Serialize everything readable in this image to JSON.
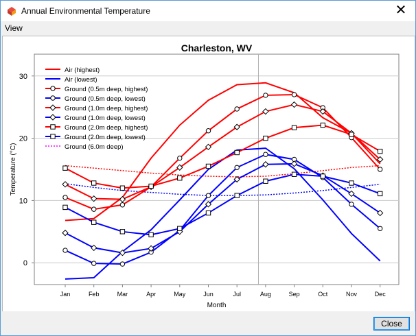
{
  "window": {
    "title": "Annual Environmental Temperature",
    "close_glyph": "✕"
  },
  "menu": {
    "view_label": "View"
  },
  "buttons": {
    "close_label": "Close"
  },
  "chart_data": {
    "type": "line",
    "title": "Charleston, WV",
    "xlabel": "Month",
    "ylabel": "Temperature (°C)",
    "categories": [
      "Jan",
      "Feb",
      "Mar",
      "Apr",
      "May",
      "Jun",
      "Jul",
      "Aug",
      "Sep",
      "Oct",
      "Nov",
      "Dec"
    ],
    "ylim": [
      -3.5,
      33.5
    ],
    "yticks": [
      0,
      10,
      20,
      30
    ],
    "grid": true,
    "legend_position": "top-left",
    "series": [
      {
        "name": "Air (highest)",
        "color": "#ff0000",
        "style": "solid",
        "marker": "none",
        "values": [
          6.8,
          7.1,
          10.5,
          16.8,
          22.1,
          26.1,
          28.6,
          28.9,
          27.3,
          23.3,
          20.8,
          15.9
        ]
      },
      {
        "name": "Air (lowest)",
        "color": "#0000ff",
        "style": "solid",
        "marker": "none",
        "values": [
          -2.6,
          -2.4,
          1.8,
          5.3,
          10.1,
          15.0,
          18.1,
          18.4,
          15.1,
          10.1,
          4.7,
          0.3
        ]
      },
      {
        "name": "Ground (0.5m deep, highest)",
        "color": "#ff0000",
        "style": "solid",
        "marker": "circle",
        "values": [
          10.5,
          8.6,
          9.3,
          12.2,
          16.8,
          21.2,
          24.7,
          26.9,
          27.0,
          24.9,
          20.1,
          15.0
        ]
      },
      {
        "name": "Ground (0.5m deep, lowest)",
        "color": "#0000ff",
        "style": "solid",
        "marker": "circle",
        "values": [
          2.0,
          -0.1,
          -0.2,
          1.7,
          5.2,
          10.8,
          15.3,
          17.4,
          16.6,
          13.7,
          9.4,
          5.5
        ]
      },
      {
        "name": "Ground (1.0m deep, highest)",
        "color": "#ff0000",
        "style": "solid",
        "marker": "diamond",
        "values": [
          12.6,
          10.3,
          10.2,
          12.2,
          15.3,
          18.6,
          21.8,
          24.3,
          25.4,
          24.3,
          20.8,
          16.6
        ]
      },
      {
        "name": "Ground (1.0m deep, lowest)",
        "color": "#0000ff",
        "style": "solid",
        "marker": "diamond",
        "values": [
          4.8,
          2.4,
          1.6,
          2.3,
          5.0,
          9.4,
          13.4,
          15.8,
          15.9,
          14.0,
          11.1,
          8.0
        ]
      },
      {
        "name": "Ground (2.0m deep, highest)",
        "color": "#ff0000",
        "style": "solid",
        "marker": "square",
        "values": [
          15.2,
          12.8,
          12.0,
          12.3,
          13.6,
          15.5,
          17.7,
          20.0,
          21.7,
          22.1,
          20.6,
          17.9
        ]
      },
      {
        "name": "Ground (2.0m deep, lowest)",
        "color": "#0000ff",
        "style": "solid",
        "marker": "square",
        "values": [
          8.9,
          6.5,
          5.0,
          4.5,
          5.5,
          8.0,
          10.8,
          13.1,
          14.2,
          13.9,
          12.8,
          11.1
        ]
      },
      {
        "name": "Ground (6.0m deep)",
        "color": "#ff00ff",
        "style": "dotted",
        "marker": "none",
        "values": null
      },
      {
        "name": "",
        "color": "#ff0000",
        "style": "dotted",
        "marker": "none",
        "values": [
          15.6,
          15.2,
          14.8,
          14.4,
          14.1,
          13.9,
          13.8,
          13.9,
          14.3,
          14.8,
          15.3,
          15.6
        ]
      },
      {
        "name": "",
        "color": "#0000ff",
        "style": "dotted",
        "marker": "none",
        "values": [
          12.7,
          12.1,
          11.6,
          11.3,
          11.0,
          10.8,
          10.8,
          10.9,
          11.2,
          11.6,
          12.1,
          12.6
        ]
      }
    ]
  }
}
